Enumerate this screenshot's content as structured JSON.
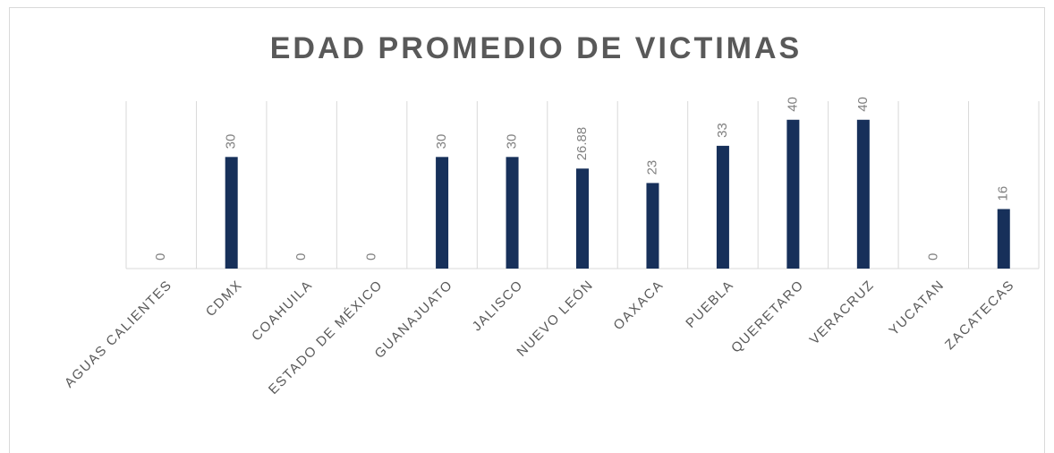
{
  "chart_data": {
    "type": "bar",
    "title": "EDAD PROMEDIO DE VICTIMAS",
    "categories": [
      "AGUAS CALIENTES",
      "CDMX",
      "COAHUILA",
      "ESTADO DE MÉXICO",
      "GUANAJUATO",
      "JALISCO",
      "NUEVO LEÓN",
      "OAXACA",
      "PUEBLA",
      "QUERETARO",
      "VERACRUZ",
      "YUCATAN",
      "ZACATECAS"
    ],
    "values": [
      0,
      30,
      0,
      0,
      30,
      30,
      26.88,
      23,
      33,
      40,
      40,
      0,
      16
    ],
    "color": "#17305a",
    "ylim": [
      0,
      45
    ],
    "grid": true
  }
}
